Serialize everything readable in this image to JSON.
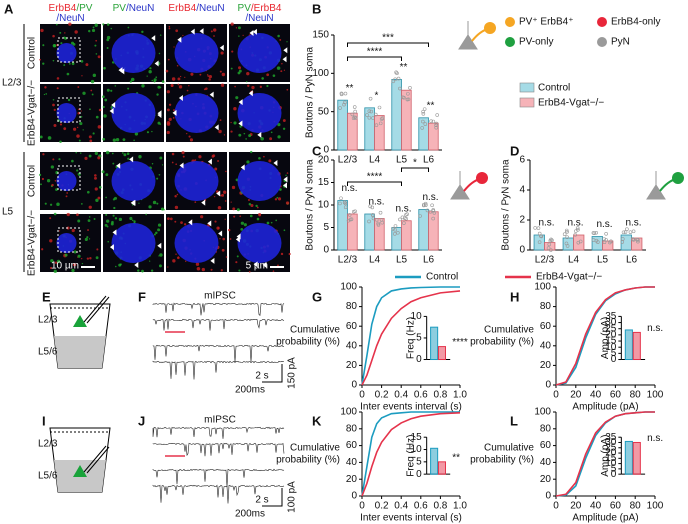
{
  "figure": {
    "panel_labels": [
      "A",
      "B",
      "C",
      "D",
      "E",
      "F",
      "G",
      "H",
      "I",
      "J",
      "K",
      "L"
    ],
    "image_headers": [
      [
        [
          {
            "text": "ErbB4",
            "color": "#e8262e"
          },
          {
            "text": "/PV",
            "color": "#2aa33a"
          }
        ],
        [
          {
            "text": "/NeuN",
            "color": "#2a35c8"
          }
        ]
      ],
      [
        [
          {
            "text": "PV",
            "color": "#2aa33a"
          },
          {
            "text": "/NeuN",
            "color": "#2a35c8"
          }
        ]
      ],
      [
        [
          {
            "text": "ErbB4",
            "color": "#e8262e"
          },
          {
            "text": "/NeuN",
            "color": "#2a35c8"
          }
        ]
      ],
      [
        [
          {
            "text": "PV",
            "color": "#2aa33a"
          },
          {
            "text": "/ErbB4",
            "color": "#e8262e"
          }
        ],
        [
          {
            "text": "/NeuN",
            "color": "#2a35c8"
          }
        ]
      ]
    ],
    "layers": [
      {
        "label": "L2/3",
        "rows": [
          "Control",
          "ErbB4-Vgat−/−"
        ]
      },
      {
        "label": "L5",
        "rows": [
          "Control",
          "ErbB4-Vgat−/−"
        ]
      }
    ],
    "scale_bars": [
      "10 µm",
      "5 µm"
    ],
    "cell_legend": [
      {
        "label": "PV⁺ ErbB4⁺",
        "color": "#f5a623"
      },
      {
        "label": "ErbB4-only",
        "color": "#e8263a"
      },
      {
        "label": "PV-only",
        "color": "#1fa040"
      },
      {
        "label": "PyN",
        "color": "#9a9a9a"
      }
    ],
    "schematics": [
      {
        "layers": [
          "L2/3",
          "L5/6"
        ]
      },
      {
        "layers": [
          "L2/3",
          "L5/6"
        ]
      }
    ],
    "traces": [
      {
        "title": "mIPSC",
        "time_bars": [
          "2 s",
          "200ms"
        ],
        "amp_bar": "150 pA"
      },
      {
        "title": "mIPSC",
        "time_bars": [
          "2 s",
          "200ms"
        ],
        "amp_bar": "100 pA"
      }
    ]
  },
  "chart_data": [
    {
      "type": "bar",
      "ylabel": "Boutons / PyN soma",
      "categories": [
        "L2/3",
        "L4",
        "L5",
        "L6"
      ],
      "series": [
        {
          "name": "Control",
          "color": "#a5dbe6",
          "values": [
            65,
            55,
            92,
            42
          ]
        },
        {
          "name": "ErbB4-Vgat−/−",
          "color": "#f6b3b8",
          "values": [
            48,
            45,
            78,
            35
          ]
        }
      ],
      "ylim": [
        0,
        150
      ],
      "yticks": [
        0,
        50,
        100,
        150
      ],
      "annotations": [
        "**",
        "*",
        "**",
        "**"
      ],
      "brackets": [
        {
          "between": [
            "L2/3",
            "L5"
          ],
          "label": "****"
        },
        {
          "between": [
            "L2/3",
            "L6"
          ],
          "label": "***"
        }
      ]
    },
    {
      "type": "bar",
      "ylabel": "Boutons / PyN soma",
      "categories": [
        "L2/3",
        "L4",
        "L5",
        "L6"
      ],
      "series": [
        {
          "color": "#a5dbe6",
          "values": [
            11,
            8,
            5,
            9
          ]
        },
        {
          "color": "#f6b3b8",
          "values": [
            8,
            7,
            6.5,
            8.5
          ]
        }
      ],
      "ylim": [
        0,
        20
      ],
      "yticks": [
        0,
        5,
        10,
        15,
        20
      ],
      "annotations": [
        "n.s.",
        "n.s.",
        "n.s.",
        "n.s."
      ],
      "brackets": [
        {
          "between": [
            "L2/3",
            "L5"
          ],
          "label": "****"
        },
        {
          "between": [
            "L5",
            "L6"
          ],
          "label": "*"
        }
      ]
    },
    {
      "type": "bar",
      "ylabel": "Boutons / PyN soma",
      "categories": [
        "L2/3",
        "L4",
        "L5",
        "L6"
      ],
      "series": [
        {
          "color": "#a5dbe6",
          "values": [
            1.0,
            0.8,
            0.9,
            1.0
          ]
        },
        {
          "color": "#f6b3b8",
          "values": [
            0.5,
            1.0,
            0.6,
            0.8
          ]
        }
      ],
      "ylim": [
        0,
        6
      ],
      "yticks": [
        0,
        2,
        4,
        6
      ],
      "annotations": [
        "n.s.",
        "n.s.",
        "n.s.",
        "n.s."
      ],
      "brackets": []
    },
    {
      "type": "line",
      "xlabel": "Inter events interval (s)",
      "ylabel_lines": [
        "Cumulative",
        "probability (%)"
      ],
      "x": [
        0,
        0.05,
        0.1,
        0.15,
        0.2,
        0.3,
        0.4,
        0.5,
        0.6,
        0.8,
        1.0
      ],
      "series": [
        {
          "name": "Control",
          "color": "#1c9cc0",
          "values": [
            0,
            30,
            62,
            80,
            89,
            96,
            98,
            99,
            99.5,
            100,
            100
          ]
        },
        {
          "name": "ErbB4-Vgat−/−",
          "color": "#e5334b",
          "values": [
            0,
            10,
            25,
            40,
            52,
            68,
            78,
            85,
            89,
            94,
            96
          ]
        }
      ],
      "xlim": [
        0,
        1
      ],
      "xticks": [
        0,
        0.2,
        0.4,
        0.6,
        0.8,
        {
          "value": 1,
          "label": "1.0"
        }
      ],
      "ylim": [
        0,
        100
      ],
      "yticks": [
        0,
        20,
        40,
        60,
        80,
        100
      ],
      "inset": {
        "type": "bar",
        "ylabel": "Freq (Hz)",
        "values": [
          7.5,
          3
        ],
        "ylim": [
          0,
          10
        ],
        "yticks": [
          0,
          5,
          10
        ],
        "annotation": "****"
      }
    },
    {
      "type": "line",
      "xlabel": "Amplitude (pA)",
      "ylabel_lines": [
        "Cumulative",
        "probability (%)"
      ],
      "x": [
        0,
        10,
        20,
        30,
        40,
        50,
        60,
        70,
        80,
        90,
        100
      ],
      "series": [
        {
          "color": "#1c9cc0",
          "values": [
            0,
            2,
            18,
            48,
            72,
            86,
            93,
            97,
            99,
            100,
            100
          ]
        },
        {
          "color": "#e5334b",
          "values": [
            0,
            3,
            22,
            52,
            74,
            87,
            94,
            97,
            99,
            100,
            100
          ]
        }
      ],
      "xlim": [
        0,
        100
      ],
      "xticks": [
        0,
        20,
        40,
        60,
        80,
        100
      ],
      "ylim": [
        0,
        100
      ],
      "yticks": [
        0,
        20,
        40,
        60,
        80,
        100
      ],
      "inset": {
        "type": "bar",
        "ylabel": "Amp (pA)",
        "values": [
          24,
          22
        ],
        "ylim": [
          0,
          35
        ],
        "yticks": [
          0,
          5,
          10,
          15,
          20,
          25,
          30,
          35
        ],
        "annotation": "n.s."
      }
    },
    {
      "type": "line",
      "xlabel": "Inter events interval (s)",
      "ylabel_lines": [
        "Cumulative",
        "probability (%)"
      ],
      "x": [
        0,
        0.05,
        0.1,
        0.15,
        0.2,
        0.3,
        0.4,
        0.5,
        0.6,
        0.8,
        1.0
      ],
      "series": [
        {
          "color": "#1c9cc0",
          "values": [
            0,
            35,
            70,
            86,
            93,
            98,
            99,
            100,
            100,
            100,
            100
          ]
        },
        {
          "color": "#e5334b",
          "values": [
            0,
            15,
            35,
            52,
            64,
            79,
            87,
            92,
            95,
            98,
            99
          ]
        }
      ],
      "xlim": [
        0,
        1
      ],
      "xticks": [
        0,
        0.2,
        0.4,
        0.6,
        0.8,
        {
          "value": 1,
          "label": "1.0"
        }
      ],
      "ylim": [
        0,
        100
      ],
      "yticks": [
        0,
        20,
        40,
        60,
        80,
        100
      ],
      "inset": {
        "type": "bar",
        "ylabel": "Freq (Hz)",
        "values": [
          10.5,
          5
        ],
        "ylim": [
          0,
          15
        ],
        "yticks": [
          0,
          5,
          10,
          15
        ],
        "annotation": "**"
      }
    },
    {
      "type": "line",
      "xlabel": "Amplitude (pA)",
      "ylabel_lines": [
        "Cumulative",
        "probability (%)"
      ],
      "x": [
        0,
        10,
        20,
        30,
        40,
        50,
        60,
        70,
        80,
        90,
        100
      ],
      "series": [
        {
          "color": "#1c9cc0",
          "values": [
            0,
            1,
            12,
            45,
            72,
            87,
            95,
            98,
            99,
            100,
            100
          ]
        },
        {
          "color": "#e5334b",
          "values": [
            0,
            2,
            16,
            50,
            75,
            88,
            95,
            98,
            99,
            100,
            100
          ]
        }
      ],
      "xlim": [
        0,
        100
      ],
      "xticks": [
        0,
        20,
        40,
        60,
        80,
        100
      ],
      "ylim": [
        0,
        100
      ],
      "yticks": [
        0,
        20,
        40,
        60,
        80,
        100
      ],
      "inset": {
        "type": "bar",
        "ylabel": "Amp (pA)",
        "values": [
          31,
          30
        ],
        "ylim": [
          0,
          35
        ],
        "yticks": [
          0,
          5,
          10,
          15,
          20,
          25,
          30,
          35
        ],
        "annotation": "n.s."
      }
    }
  ]
}
